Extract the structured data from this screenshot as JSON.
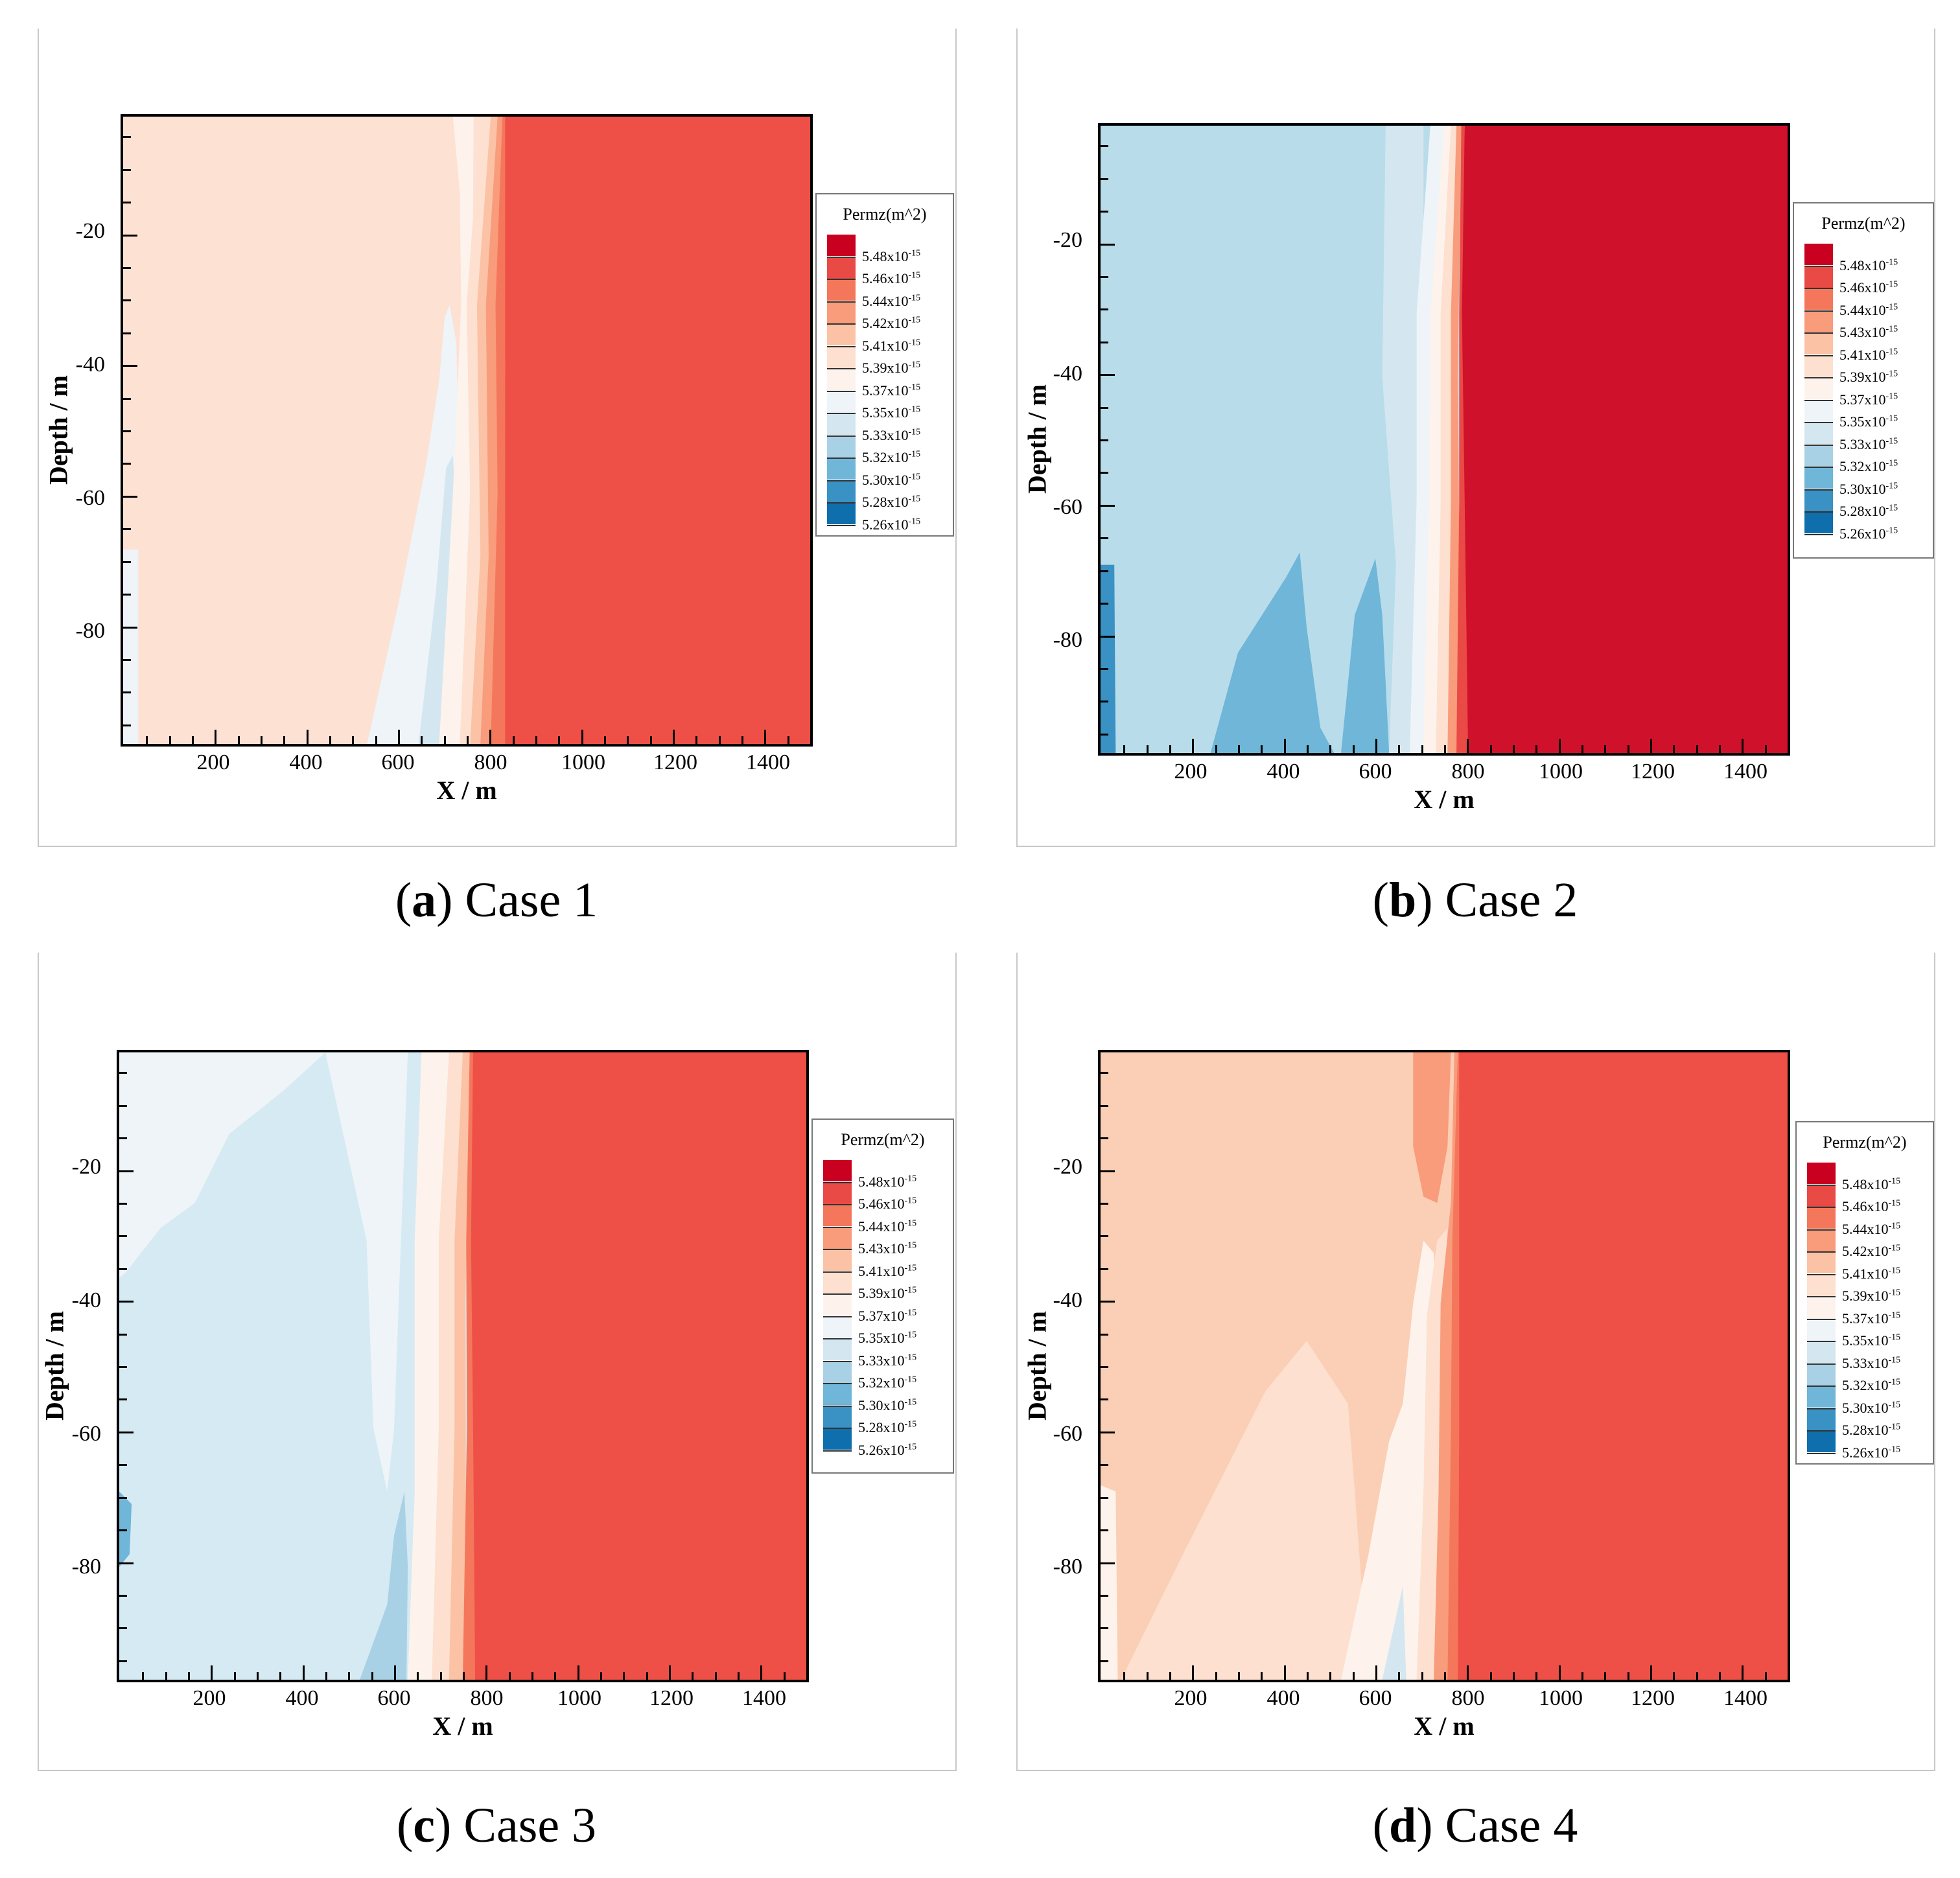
{
  "panels": [
    {
      "caption_letter": "a",
      "caption_text": "Case 1",
      "legend_title": "Permz(m^2)",
      "legend_levels": [
        "5.48x10",
        "5.46x10",
        "5.44x10",
        "5.42x10",
        "5.41x10",
        "5.39x10",
        "5.37x10",
        "5.35x10",
        "5.33x10",
        "5.32x10",
        "5.30x10",
        "5.28x10",
        "5.26x10"
      ],
      "legend_exp": "-15",
      "background": "#fde1d3",
      "right_color": "#ee5047"
    },
    {
      "caption_letter": "b",
      "caption_text": "Case 2",
      "legend_title": "Permz(m^2)",
      "legend_levels": [
        "5.48x10",
        "5.46x10",
        "5.44x10",
        "5.43x10",
        "5.41x10",
        "5.39x10",
        "5.37x10",
        "5.35x10",
        "5.33x10",
        "5.32x10",
        "5.30x10",
        "5.28x10",
        "5.26x10"
      ],
      "legend_exp": "-15",
      "background": "#b8dcea",
      "right_color": "#d0112b"
    },
    {
      "caption_letter": "c",
      "caption_text": "Case 3",
      "legend_title": "Permz(m^2)",
      "legend_levels": [
        "5.48x10",
        "5.46x10",
        "5.44x10",
        "5.43x10",
        "5.41x10",
        "5.39x10",
        "5.37x10",
        "5.35x10",
        "5.33x10",
        "5.32x10",
        "5.30x10",
        "5.28x10",
        "5.26x10"
      ],
      "legend_exp": "-15",
      "background": "#d6eaf3",
      "right_color": "#ee5047"
    },
    {
      "caption_letter": "d",
      "caption_text": "Case 4",
      "legend_title": "Permz(m^2)",
      "legend_levels": [
        "5.48x10",
        "5.46x10",
        "5.44x10",
        "5.42x10",
        "5.41x10",
        "5.39x10",
        "5.37x10",
        "5.35x10",
        "5.33x10",
        "5.32x10",
        "5.30x10",
        "5.28x10",
        "5.26x10"
      ],
      "legend_exp": "-15",
      "background": "#fbcfb5",
      "right_color": "#ee5047"
    }
  ],
  "chart_data": [
    {
      "type": "heatmap",
      "title": "(a) Case 1",
      "xlabel": "X / m",
      "ylabel": "Depth / m",
      "xlim": [
        0,
        1500
      ],
      "ylim": [
        -98,
        -2
      ],
      "x_ticks": [
        200,
        400,
        600,
        800,
        1000,
        1200,
        1400
      ],
      "y_ticks": [
        -20,
        -40,
        -60,
        -80
      ],
      "colorbar_title": "Permz(m^2)",
      "colorbar_levels": [
        5.48e-15,
        5.46e-15,
        5.44e-15,
        5.42e-15,
        5.41e-15,
        5.39e-15,
        5.37e-15,
        5.35e-15,
        5.33e-15,
        5.32e-15,
        5.3e-15,
        5.28e-15,
        5.26e-15
      ],
      "field_summary": "left of x≈780 m mostly 5.41e-15 to 5.43e-15; right of x≈780 m about 5.47e-15"
    },
    {
      "type": "heatmap",
      "title": "(b) Case 2",
      "xlabel": "X / m",
      "ylabel": "Depth / m",
      "xlim": [
        0,
        1500
      ],
      "ylim": [
        -98,
        -2
      ],
      "x_ticks": [
        200,
        400,
        600,
        800,
        1000,
        1200,
        1400
      ],
      "y_ticks": [
        -20,
        -40,
        -60,
        -80
      ],
      "colorbar_title": "Permz(m^2)",
      "colorbar_levels": [
        5.48e-15,
        5.46e-15,
        5.44e-15,
        5.43e-15,
        5.41e-15,
        5.39e-15,
        5.37e-15,
        5.35e-15,
        5.33e-15,
        5.32e-15,
        5.3e-15,
        5.28e-15,
        5.26e-15
      ],
      "field_summary": "left of x≈800 m mostly 5.32e-15 to 5.35e-15; right of x≈800 m about 5.48e-15"
    },
    {
      "type": "heatmap",
      "title": "(c) Case 3",
      "xlabel": "X / m",
      "ylabel": "Depth / m",
      "xlim": [
        0,
        1500
      ],
      "ylim": [
        -98,
        -2
      ],
      "x_ticks": [
        200,
        400,
        600,
        800,
        1000,
        1200,
        1400
      ],
      "y_ticks": [
        -20,
        -40,
        -60,
        -80
      ],
      "colorbar_title": "Permz(m^2)",
      "colorbar_levels": [
        5.48e-15,
        5.46e-15,
        5.44e-15,
        5.43e-15,
        5.41e-15,
        5.39e-15,
        5.37e-15,
        5.35e-15,
        5.33e-15,
        5.32e-15,
        5.3e-15,
        5.28e-15,
        5.26e-15
      ],
      "field_summary": "left of x≈770 m mostly 5.35e-15 to 5.37e-15; right of x≈770 m about 5.47e-15"
    },
    {
      "type": "heatmap",
      "title": "(d) Case 4",
      "xlabel": "X / m",
      "ylabel": "Depth / m",
      "xlim": [
        0,
        1500
      ],
      "ylim": [
        -98,
        -2
      ],
      "x_ticks": [
        200,
        400,
        600,
        800,
        1000,
        1200,
        1400
      ],
      "y_ticks": [
        -20,
        -40,
        -60,
        -80
      ],
      "colorbar_title": "Permz(m^2)",
      "colorbar_levels": [
        5.48e-15,
        5.46e-15,
        5.44e-15,
        5.42e-15,
        5.41e-15,
        5.39e-15,
        5.37e-15,
        5.35e-15,
        5.33e-15,
        5.32e-15,
        5.3e-15,
        5.28e-15,
        5.26e-15
      ],
      "field_summary": "left of x≈770 m mostly 5.41e-15 to 5.43e-15; right of x≈770 m about 5.47e-15"
    }
  ],
  "legend_colors": [
    "#ca0020",
    "#ea4a45",
    "#f5775b",
    "#f89c7c",
    "#fbc2a6",
    "#fde0cf",
    "#fdf3ec",
    "#eef4f8",
    "#d4e7f1",
    "#a9d1e5",
    "#6fb6d8",
    "#3a91c3",
    "#0f6fad"
  ]
}
